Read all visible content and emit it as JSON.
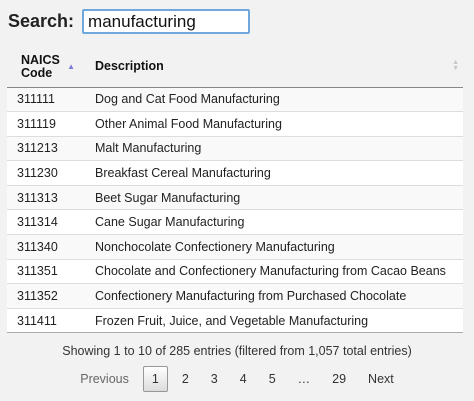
{
  "search": {
    "label": "Search:",
    "value": "manufacturing"
  },
  "table": {
    "columns": [
      "NAICS Code",
      "Description"
    ],
    "rows": [
      {
        "code": "311111",
        "desc": "Dog and Cat Food Manufacturing"
      },
      {
        "code": "311119",
        "desc": "Other Animal Food Manufacturing"
      },
      {
        "code": "311213",
        "desc": "Malt Manufacturing"
      },
      {
        "code": "311230",
        "desc": "Breakfast Cereal Manufacturing"
      },
      {
        "code": "311313",
        "desc": "Beet Sugar Manufacturing"
      },
      {
        "code": "311314",
        "desc": "Cane Sugar Manufacturing"
      },
      {
        "code": "311340",
        "desc": "Nonchocolate Confectionery Manufacturing"
      },
      {
        "code": "311351",
        "desc": "Chocolate and Confectionery Manufacturing from Cacao Beans"
      },
      {
        "code": "311352",
        "desc": "Confectionery Manufacturing from Purchased Chocolate"
      },
      {
        "code": "311411",
        "desc": "Frozen Fruit, Juice, and Vegetable Manufacturing"
      }
    ]
  },
  "info": "Showing 1 to 10 of 285 entries (filtered from 1,057 total entries)",
  "pagination": {
    "previous": "Previous",
    "pages": [
      "1",
      "2",
      "3",
      "4",
      "5"
    ],
    "ellipsis": "…",
    "last": "29",
    "next": "Next"
  }
}
